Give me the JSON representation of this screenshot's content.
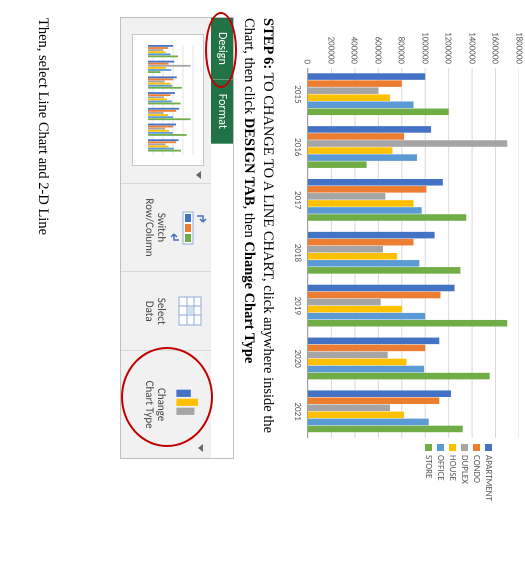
{
  "chart": {
    "type": "bar",
    "y_max": 1800000,
    "y_step": 200000,
    "y_labels": [
      "0",
      "200000",
      "400000",
      "600000",
      "800000",
      "1000000",
      "1200000",
      "1400000",
      "1600000",
      "1800000"
    ],
    "categories": [
      "2015",
      "2016",
      "2017",
      "2018",
      "2019",
      "2020",
      "2021"
    ],
    "series": {
      "APARTMENT": {
        "color": "#4472c4",
        "values": [
          1000000,
          1050000,
          1150000,
          1080000,
          1250000,
          1120000,
          1220000
        ]
      },
      "CONDO": {
        "color": "#ed7d31",
        "values": [
          800000,
          820000,
          1010000,
          900000,
          1130000,
          1000000,
          1120000
        ]
      },
      "DUPLEX": {
        "color": "#a5a5a5",
        "values": [
          600000,
          1700000,
          660000,
          640000,
          620000,
          680000,
          700000
        ]
      },
      "HOUSE": {
        "color": "#ffc000",
        "values": [
          700000,
          720000,
          900000,
          760000,
          800000,
          840000,
          820000
        ]
      },
      "OFFICE": {
        "color": "#5b9bd5",
        "values": [
          900000,
          930000,
          970000,
          950000,
          1000000,
          990000,
          1030000
        ]
      },
      "STORE": {
        "color": "#70ad47",
        "values": [
          1200000,
          500000,
          1350000,
          1300000,
          1700000,
          1550000,
          1320000
        ]
      }
    },
    "grid_color": "#d9d9d9",
    "label_color": "#595959",
    "label_fontsize": 9,
    "background_color": "#ffffff"
  },
  "step": {
    "label": "STEP 6:",
    "line1_rest": " TO CHANGE TO A LINE CHART, click anywhere inside the",
    "line2_a": "Chart, then click ",
    "design_tab": "DESIGN TAB",
    "line2_b": ", then ",
    "change_chart_type": "Change Chart Type"
  },
  "ribbon": {
    "tabs": {
      "design": "Design",
      "format": "Format"
    },
    "switch_row_col": "Switch\nRow/Column",
    "select_data": "Select\nData",
    "change_chart_type": "Change\nChart Type",
    "accent_green": "#217346",
    "circle_color": "#c00000"
  },
  "final_line": "Then, select Line Chart and 2-D Line"
}
